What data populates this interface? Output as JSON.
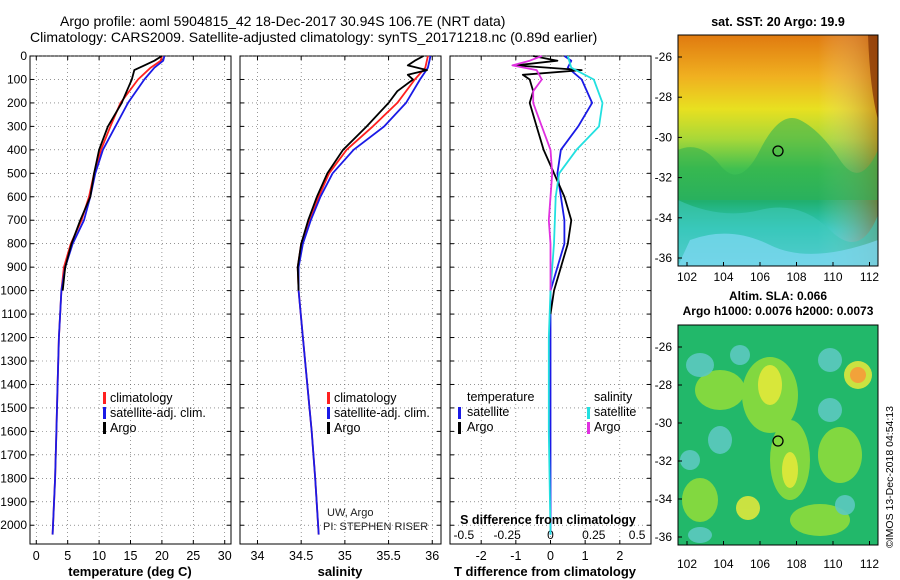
{
  "header": {
    "line1": "Argo profile: aoml 5904815_42 18-Dec-2017 30.94S 106.7E (NRT data)",
    "line2": "Climatology: CARS2009. Satellite-adjusted climatology: synTS_20171218.nc (0.89d earlier)"
  },
  "colors": {
    "climatology": "#ff2020",
    "satellite": "#1a1ae6",
    "argo": "#000000",
    "sat_salinity": "#22e0e0",
    "argo_salinity": "#e030e0"
  },
  "chart_data": [
    {
      "type": "line",
      "name": "temperature-panel",
      "xlabel": "temperature (deg C)",
      "ylabel": "",
      "xlim": [
        -1,
        31
      ],
      "ylim": [
        2080,
        0
      ],
      "x_ticks": [
        "0",
        "5",
        "10",
        "15",
        "20",
        "25",
        "30"
      ],
      "y_ticks": [
        "0",
        "100",
        "200",
        "300",
        "400",
        "500",
        "600",
        "700",
        "800",
        "900",
        "1000",
        "1100",
        "1200",
        "1300",
        "1400",
        "1500",
        "1600",
        "1700",
        "1800",
        "1900",
        "2000"
      ],
      "grid": true,
      "legend_position": "bottom-center",
      "legend": [
        "climatology",
        "satellite-adj. clim.",
        "Argo"
      ],
      "series": [
        {
          "name": "climatology",
          "depth": [
            0,
            20,
            50,
            100,
            200,
            300,
            400,
            500,
            600,
            700,
            800,
            900,
            1000,
            1200,
            1400,
            1600,
            1800,
            2040
          ],
          "values": [
            20.0,
            19.8,
            18.2,
            16.2,
            13.4,
            11.8,
            10.3,
            9.2,
            8.4,
            7.2,
            5.5,
            4.4,
            4.0,
            3.6,
            3.4,
            3.2,
            3.0,
            2.6
          ]
        },
        {
          "name": "satellite-adj. clim.",
          "depth": [
            0,
            20,
            50,
            100,
            200,
            300,
            400,
            500,
            600,
            700,
            800,
            900,
            1000,
            1200,
            1400,
            1600,
            1800,
            2040
          ],
          "values": [
            20.4,
            20.2,
            18.8,
            17.2,
            14.6,
            12.6,
            10.6,
            9.4,
            8.6,
            7.6,
            5.8,
            4.6,
            4.0,
            3.6,
            3.4,
            3.2,
            3.0,
            2.6
          ]
        },
        {
          "name": "Argo",
          "depth": [
            0,
            20,
            40,
            60,
            100,
            200,
            300,
            400,
            500,
            600,
            700,
            800,
            900,
            1000
          ],
          "values": [
            20.0,
            18.8,
            17.2,
            15.6,
            15.2,
            13.6,
            11.4,
            10.0,
            9.2,
            8.6,
            7.0,
            5.6,
            4.6,
            4.2
          ]
        }
      ]
    },
    {
      "type": "line",
      "name": "salinity-panel",
      "xlabel": "salinity",
      "xlim": [
        33.8,
        36.1
      ],
      "ylim": [
        2080,
        0
      ],
      "x_ticks": [
        "34",
        "34.5",
        "35",
        "35.5",
        "36"
      ],
      "grid": true,
      "legend_position": "bottom-right",
      "legend": [
        "climatology",
        "satellite-adj. clim.",
        "Argo"
      ],
      "note_lines": [
        "UW, Argo",
        "PI: STEPHEN RISER"
      ],
      "series": [
        {
          "name": "climatology",
          "depth": [
            0,
            50,
            100,
            200,
            300,
            400,
            500,
            600,
            700,
            800,
            900,
            1000,
            1200,
            1400,
            1600,
            1800,
            2040
          ],
          "values": [
            35.95,
            35.92,
            35.8,
            35.6,
            35.32,
            35.02,
            34.82,
            34.7,
            34.6,
            34.5,
            34.46,
            34.47,
            34.52,
            34.57,
            34.62,
            34.66,
            34.7
          ]
        },
        {
          "name": "satellite-adj. clim.",
          "depth": [
            0,
            50,
            100,
            200,
            300,
            400,
            500,
            600,
            700,
            800,
            900,
            1000,
            1200,
            1400,
            1600,
            1800,
            2040
          ],
          "values": [
            35.98,
            35.95,
            35.86,
            35.7,
            35.45,
            35.1,
            34.86,
            34.72,
            34.61,
            34.52,
            34.47,
            34.47,
            34.52,
            34.57,
            34.62,
            34.66,
            34.7
          ]
        },
        {
          "name": "Argo",
          "depth": [
            0,
            20,
            40,
            60,
            80,
            100,
            150,
            200,
            300,
            400,
            500,
            600,
            700,
            800,
            900,
            1000
          ],
          "values": [
            35.9,
            35.8,
            35.72,
            35.94,
            35.72,
            35.78,
            35.6,
            35.5,
            35.25,
            34.98,
            34.8,
            34.68,
            34.58,
            34.5,
            34.46,
            34.47
          ]
        }
      ]
    },
    {
      "type": "line",
      "name": "difference-panel",
      "xlabel": "T difference from climatology",
      "xlabel_top": "S difference from climatology",
      "xlim": [
        -2.9,
        2.9
      ],
      "ylim": [
        2080,
        0
      ],
      "x_ticks": [
        "-2",
        "-1",
        "0",
        "1",
        "2"
      ],
      "s_ticks": [
        "-0.5",
        "-0.25",
        "0",
        "0.25",
        "0.5"
      ],
      "grid": true,
      "legend_position": "bottom",
      "legend_temperature": {
        "title": "temperature",
        "items": [
          "satellite",
          "Argo"
        ]
      },
      "legend_salinity": {
        "title": "salinity",
        "items": [
          "satellite",
          "Argo"
        ]
      },
      "series": [
        {
          "name": "temperature satellite",
          "depth": [
            0,
            20,
            50,
            100,
            200,
            300,
            400,
            500,
            600,
            700,
            800,
            900,
            1000,
            1200,
            1600,
            2040
          ],
          "values": [
            0.4,
            0.6,
            0.5,
            0.9,
            1.2,
            0.8,
            0.3,
            0.2,
            0.3,
            0.4,
            0.4,
            0.2,
            0.0,
            0.0,
            0.0,
            0.0
          ]
        },
        {
          "name": "temperature Argo",
          "depth": [
            0,
            20,
            40,
            60,
            80,
            100,
            150,
            200,
            300,
            400,
            500,
            600,
            700,
            800,
            900,
            1000,
            1100
          ],
          "values": [
            -0.5,
            0.2,
            -1.0,
            0.9,
            -0.8,
            -0.6,
            -0.5,
            -0.6,
            -0.4,
            -0.2,
            0.1,
            0.4,
            0.6,
            0.5,
            0.3,
            0.1,
            0.0
          ]
        },
        {
          "name": "salinity satellite",
          "depth": [
            0,
            50,
            100,
            200,
            300,
            400,
            500,
            600,
            800,
            1000,
            1200,
            1600,
            2040
          ],
          "values": [
            0.1,
            0.12,
            0.25,
            0.3,
            0.28,
            0.15,
            0.05,
            0.03,
            0.02,
            0.0,
            -0.01,
            -0.01,
            0.0
          ]
        },
        {
          "name": "salinity Argo",
          "depth": [
            0,
            20,
            40,
            60,
            100,
            150,
            200,
            300,
            400,
            500,
            600,
            700,
            800,
            900,
            1000
          ],
          "values": [
            -0.05,
            -0.12,
            -0.22,
            -0.08,
            -0.05,
            -0.1,
            -0.1,
            -0.05,
            0.0,
            0.01,
            0.0,
            -0.01,
            0.0,
            0.0,
            0.0
          ]
        }
      ]
    }
  ],
  "maps": {
    "sst": {
      "title": "sat. SST: 20 Argo: 19.9",
      "lat_ticks": [
        "-26",
        "-28",
        "-30",
        "-32",
        "-34",
        "-36"
      ],
      "lon_ticks": [
        "102",
        "104",
        "106",
        "108",
        "110",
        "112"
      ],
      "marker": {
        "lon": 106.7,
        "lat": -30.94
      }
    },
    "sla": {
      "title_line1": "Altim. SLA: 0.066",
      "title_line2": "Argo h1000: 0.0076 h2000: 0.0073",
      "lat_ticks": [
        "-26",
        "-28",
        "-30",
        "-32",
        "-34",
        "-36"
      ],
      "lon_ticks": [
        "102",
        "104",
        "106",
        "108",
        "110",
        "112"
      ],
      "marker": {
        "lon": 106.7,
        "lat": -30.94
      }
    }
  },
  "footer": {
    "imos_stamp": "©IMOS 13-Dec-2018 04:54:13"
  }
}
